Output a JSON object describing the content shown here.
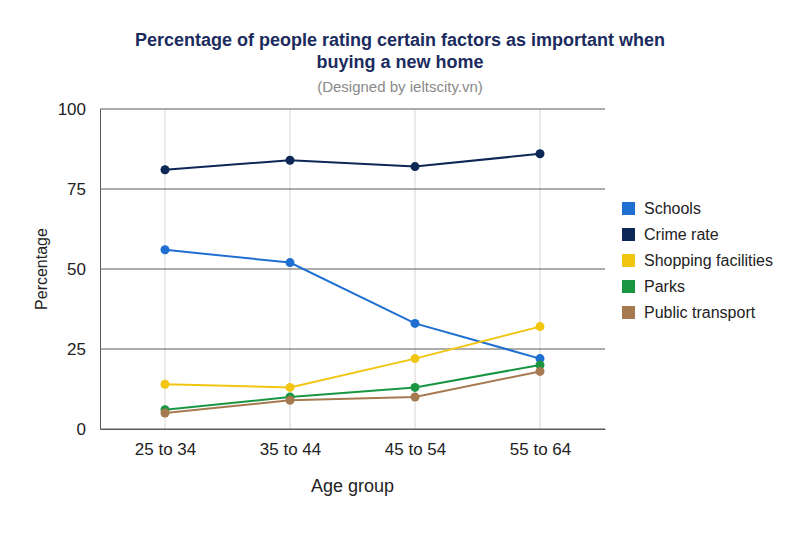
{
  "chart_data": {
    "type": "line",
    "title": "Percentage of people rating certain factors as important when buying a new home",
    "subtitle": "(Designed by ieltscity.vn)",
    "x_label": "Age group",
    "y_label": "Percentage",
    "categories": [
      "25 to 34",
      "35 to 44",
      "45 to 54",
      "55 to 64"
    ],
    "series": [
      {
        "name": "Schools",
        "color": "#1f6fd1",
        "values": [
          56,
          52,
          33,
          22
        ]
      },
      {
        "name": "Crime rate",
        "color": "#0d2757",
        "values": [
          81,
          84,
          82,
          86
        ]
      },
      {
        "name": "Shopping facilities",
        "color": "#f2c511",
        "values": [
          14,
          13,
          22,
          32
        ]
      },
      {
        "name": "Parks",
        "color": "#1a9642",
        "values": [
          6,
          10,
          13,
          20
        ]
      },
      {
        "name": "Public transport",
        "color": "#a67a50",
        "values": [
          5,
          9,
          10,
          18
        ]
      }
    ],
    "ylim": [
      0,
      100
    ],
    "yticks": [
      0,
      25,
      50,
      75,
      100
    ],
    "grid": true,
    "legend": "right",
    "marker": "circle"
  }
}
